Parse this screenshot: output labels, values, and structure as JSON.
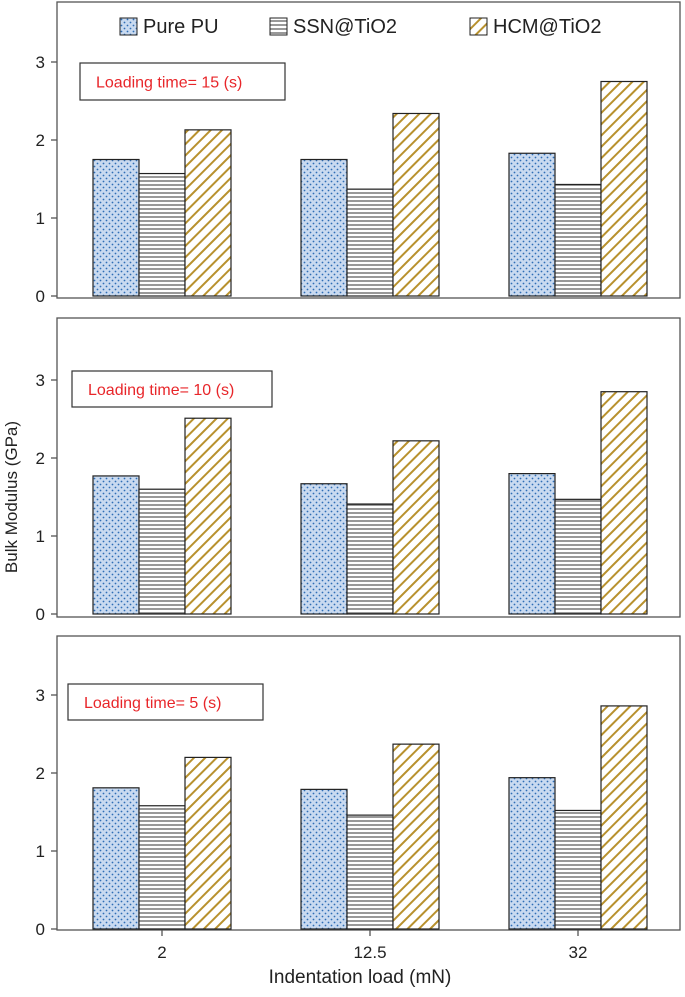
{
  "chart_data": {
    "type": "bar",
    "categories": [
      "2",
      "12.5",
      "32"
    ],
    "xlabel": "Indentation load (mN)",
    "ylabel": "Bulk Modulus (GPa)",
    "ylim": [
      0,
      3.5
    ],
    "yticks": [
      0,
      1,
      2,
      3
    ],
    "grid": false,
    "legend_position": "top",
    "series": [
      {
        "name": "Pure PU",
        "fill": "#c9daf0",
        "pattern": "dots",
        "pattern_color": "#2f6db5"
      },
      {
        "name": "SSN@TiO2",
        "fill": "#ffffff",
        "pattern": "horizontal-lines",
        "pattern_color": "#555555"
      },
      {
        "name": "HCM@TiO2",
        "fill": "#ffffff",
        "pattern": "diagonal-lines",
        "pattern_color": "#b8912e"
      }
    ],
    "panels": [
      {
        "annotation": "Loading time= 15 (s)",
        "values": {
          "Pure PU": [
            1.75,
            1.75,
            1.83
          ],
          "SSN@TiO2": [
            1.57,
            1.37,
            1.43
          ],
          "HCM@TiO2": [
            2.13,
            2.34,
            2.75
          ]
        }
      },
      {
        "annotation": "Loading time= 10 (s)",
        "values": {
          "Pure PU": [
            1.77,
            1.67,
            1.8
          ],
          "SSN@TiO2": [
            1.6,
            1.41,
            1.47
          ],
          "HCM@TiO2": [
            2.51,
            2.22,
            2.85
          ]
        }
      },
      {
        "annotation": "Loading time= 5 (s)",
        "values": {
          "Pure PU": [
            1.81,
            1.79,
            1.94
          ],
          "SSN@TiO2": [
            1.58,
            1.46,
            1.52
          ],
          "HCM@TiO2": [
            2.2,
            2.37,
            2.86
          ]
        }
      }
    ],
    "annotation_color": "#e8262a"
  }
}
